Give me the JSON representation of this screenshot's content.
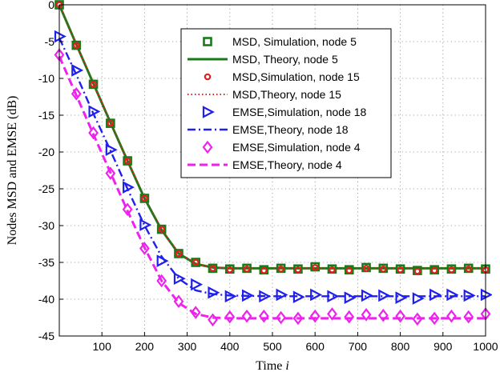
{
  "chart_data": {
    "type": "line",
    "title": "",
    "xlabel_main": "Time ",
    "xlabel_var": "i",
    "ylabel": "Nodes MSD and EMSE (dB)",
    "xlim": [
      0,
      1000
    ],
    "ylim": [
      -45,
      0
    ],
    "xticks": [
      100,
      200,
      300,
      400,
      500,
      600,
      700,
      800,
      900,
      1000
    ],
    "yticks": [
      0,
      -5,
      -10,
      -15,
      -20,
      -25,
      -30,
      -35,
      -40,
      -45
    ],
    "grid": true,
    "legend_position": "top-right",
    "series": [
      {
        "name": "MSD, Simulation, node 5",
        "style": "square-marker",
        "color": "#1a7a1a",
        "x": [
          0,
          40,
          80,
          120,
          160,
          200,
          240,
          280,
          320,
          360,
          400,
          440,
          480,
          520,
          560,
          600,
          640,
          680,
          720,
          760,
          800,
          840,
          880,
          920,
          960,
          1000
        ],
        "y": [
          0,
          -5.5,
          -10.8,
          -16.1,
          -21.2,
          -26.3,
          -30.5,
          -33.8,
          -35.0,
          -35.8,
          -35.9,
          -35.8,
          -36.0,
          -35.8,
          -35.9,
          -35.6,
          -35.9,
          -36.0,
          -35.7,
          -35.8,
          -35.9,
          -36.1,
          -36.0,
          -35.9,
          -35.8,
          -35.9
        ]
      },
      {
        "name": "MSD, Theory, node 5",
        "style": "solid",
        "color": "#1a7a1a",
        "x": [
          0,
          40,
          80,
          120,
          160,
          200,
          240,
          280,
          320,
          360,
          400,
          500,
          600,
          700,
          800,
          900,
          1000
        ],
        "y": [
          0,
          -5.4,
          -10.7,
          -16.0,
          -21.2,
          -26.3,
          -30.6,
          -33.8,
          -35.2,
          -35.7,
          -35.8,
          -35.8,
          -35.8,
          -35.8,
          -35.8,
          -35.8,
          -35.8
        ]
      },
      {
        "name": "MSD,Simulation, node 15",
        "style": "circle-marker",
        "color": "#e02020",
        "x": [
          0,
          40,
          80,
          120,
          160,
          200,
          240,
          280,
          320,
          360,
          400,
          440,
          480,
          520,
          560,
          600,
          640,
          680,
          720,
          760,
          800,
          840,
          880,
          920,
          960,
          1000
        ],
        "y": [
          0,
          -5.5,
          -10.8,
          -16.1,
          -21.2,
          -26.3,
          -30.5,
          -33.8,
          -35.0,
          -35.8,
          -36.0,
          -35.9,
          -36.1,
          -35.9,
          -36.0,
          -35.7,
          -36.0,
          -36.1,
          -35.8,
          -35.9,
          -36.0,
          -36.2,
          -36.1,
          -36.0,
          -35.9,
          -36.0
        ]
      },
      {
        "name": "MSD,Theory, node 15",
        "style": "dotted",
        "color": "#e02020",
        "x": [
          0,
          40,
          80,
          120,
          160,
          200,
          240,
          280,
          320,
          360,
          400,
          500,
          600,
          700,
          800,
          900,
          1000
        ],
        "y": [
          0,
          -5.4,
          -10.7,
          -16.0,
          -21.2,
          -26.3,
          -30.6,
          -33.8,
          -35.2,
          -35.7,
          -35.8,
          -35.8,
          -35.8,
          -35.8,
          -35.8,
          -35.8,
          -35.8
        ]
      },
      {
        "name": "EMSE,Simulation, node 18",
        "style": "triangle-marker",
        "color": "#2020ee",
        "x": [
          0,
          40,
          80,
          120,
          160,
          200,
          240,
          280,
          320,
          360,
          400,
          440,
          480,
          520,
          560,
          600,
          640,
          680,
          720,
          760,
          800,
          840,
          880,
          920,
          960,
          1000
        ],
        "y": [
          -4.3,
          -8.9,
          -14.5,
          -19.7,
          -24.8,
          -29.9,
          -34.8,
          -37.2,
          -38.0,
          -39.1,
          -39.6,
          -39.5,
          -39.6,
          -39.4,
          -39.7,
          -39.4,
          -39.6,
          -39.8,
          -39.5,
          -39.5,
          -39.8,
          -39.9,
          -39.4,
          -39.4,
          -39.5,
          -39.4
        ]
      },
      {
        "name": "EMSE,Theory, node 18",
        "style": "dashdot",
        "color": "#2020ee",
        "x": [
          0,
          40,
          80,
          120,
          160,
          200,
          240,
          280,
          320,
          360,
          400,
          500,
          600,
          700,
          800,
          900,
          1000
        ],
        "y": [
          -4.5,
          -9.5,
          -14.8,
          -19.8,
          -25.0,
          -30.0,
          -34.2,
          -37.2,
          -38.8,
          -39.3,
          -39.5,
          -39.6,
          -39.6,
          -39.6,
          -39.6,
          -39.6,
          -39.6
        ]
      },
      {
        "name": "EMSE,Simulation, node 4",
        "style": "diamond-marker",
        "color": "#ee22ee",
        "x": [
          0,
          40,
          80,
          120,
          160,
          200,
          240,
          280,
          320,
          360,
          400,
          440,
          480,
          520,
          560,
          600,
          640,
          680,
          720,
          760,
          800,
          840,
          880,
          920,
          960,
          1000
        ],
        "y": [
          -6.8,
          -12.1,
          -17.4,
          -22.9,
          -27.8,
          -33.1,
          -37.5,
          -40.3,
          -41.8,
          -42.8,
          -42.4,
          -42.3,
          -42.3,
          -42.5,
          -42.6,
          -42.3,
          -42.0,
          -42.4,
          -42.1,
          -42.2,
          -42.3,
          -42.7,
          -42.6,
          -42.3,
          -42.4,
          -42.0
        ]
      },
      {
        "name": "EMSE,Theory, node 4",
        "style": "dashed",
        "color": "#ee22ee",
        "x": [
          0,
          40,
          80,
          120,
          160,
          200,
          240,
          280,
          320,
          360,
          400,
          500,
          600,
          700,
          800,
          900,
          1000
        ],
        "y": [
          -7.0,
          -12.3,
          -17.6,
          -22.8,
          -28.0,
          -33.0,
          -37.5,
          -40.5,
          -42.0,
          -42.5,
          -42.6,
          -42.6,
          -42.6,
          -42.6,
          -42.6,
          -42.6,
          -42.6
        ]
      }
    ]
  }
}
